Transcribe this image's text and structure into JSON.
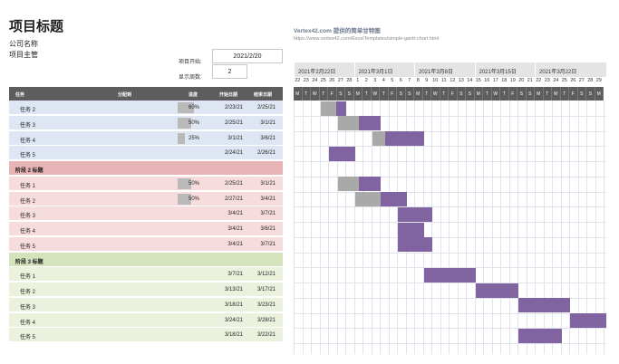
{
  "header": {
    "title": "项目标题",
    "company": "公司名称",
    "manager": "项目主管",
    "vendor": "Vertex42.com 提供的简单甘特图",
    "url": "https://www.vertex42.com/ExcelTemplates/simple-gantt-chart.html"
  },
  "controls": {
    "start_label": "项目开始:",
    "start_value": "2021/2/20",
    "week_label": "显示周数:",
    "week_value": "2"
  },
  "table": {
    "headers": {
      "task": "任务",
      "assigned": "分配到",
      "progress": "进度",
      "start": "开始日期",
      "end": "结束日期"
    },
    "rows": [
      {
        "task": "任务 2",
        "progress": "60%",
        "start": "2/23/21",
        "end": "2/25/21",
        "phase": false,
        "bg": "#dde6f2",
        "pct": 0.6,
        "bar": {
          "start_day": 3,
          "len": 3
        }
      },
      {
        "task": "任务 3",
        "progress": "50%",
        "start": "2/25/21",
        "end": "3/1/21",
        "phase": false,
        "bg": "#dde6f2",
        "pct": 0.5,
        "bar": {
          "start_day": 5,
          "len": 5
        }
      },
      {
        "task": "任务 4",
        "progress": "25%",
        "start": "3/1/21",
        "end": "3/6/21",
        "phase": false,
        "bg": "#dde6f2",
        "pct": 0.25,
        "bar": {
          "start_day": 9,
          "len": 6
        }
      },
      {
        "task": "任务 5",
        "progress": "",
        "start": "2/24/21",
        "end": "2/26/21",
        "phase": false,
        "bg": "#dde6f2",
        "pct": 0,
        "bar": {
          "start_day": 4,
          "len": 3
        }
      },
      {
        "task": "阶段 2 标题",
        "progress": "",
        "start": "",
        "end": "",
        "phase": true,
        "bg": "#e8b4b6",
        "pct": 0,
        "bar": null
      },
      {
        "task": "任务 1",
        "progress": "50%",
        "start": "2/25/21",
        "end": "3/1/21",
        "phase": false,
        "bg": "#f6dcdd",
        "pct": 0.5,
        "bar": {
          "start_day": 5,
          "len": 5
        }
      },
      {
        "task": "任务 2",
        "progress": "50%",
        "start": "2/27/21",
        "end": "3/4/21",
        "phase": false,
        "bg": "#f6dcdd",
        "pct": 0.5,
        "bar": {
          "start_day": 7,
          "len": 6
        }
      },
      {
        "task": "任务 3",
        "progress": "",
        "start": "3/4/21",
        "end": "3/7/21",
        "phase": false,
        "bg": "#f6dcdd",
        "pct": 0,
        "bar": {
          "start_day": 12,
          "len": 4
        }
      },
      {
        "task": "任务 4",
        "progress": "",
        "start": "3/4/21",
        "end": "3/6/21",
        "phase": false,
        "bg": "#f6dcdd",
        "pct": 0,
        "bar": {
          "start_day": 12,
          "len": 3
        }
      },
      {
        "task": "任务 5",
        "progress": "",
        "start": "3/4/21",
        "end": "3/7/21",
        "phase": false,
        "bg": "#f6dcdd",
        "pct": 0,
        "bar": {
          "start_day": 12,
          "len": 4
        }
      },
      {
        "task": "阶段 3 标题",
        "progress": "",
        "start": "",
        "end": "",
        "phase": true,
        "bg": "#d5e3bd",
        "pct": 0,
        "bar": null
      },
      {
        "task": "任务 1",
        "progress": "",
        "start": "3/7/21",
        "end": "3/12/21",
        "phase": false,
        "bg": "#eaf1dd",
        "pct": 0,
        "bar": {
          "start_day": 15,
          "len": 6
        }
      },
      {
        "task": "任务 2",
        "progress": "",
        "start": "3/13/21",
        "end": "3/17/21",
        "phase": false,
        "bg": "#eaf1dd",
        "pct": 0,
        "bar": {
          "start_day": 21,
          "len": 5
        }
      },
      {
        "task": "任务 3",
        "progress": "",
        "start": "3/18/21",
        "end": "3/23/21",
        "phase": false,
        "bg": "#eaf1dd",
        "pct": 0,
        "bar": {
          "start_day": 26,
          "len": 6
        }
      },
      {
        "task": "任务 4",
        "progress": "",
        "start": "3/24/21",
        "end": "3/28/21",
        "phase": false,
        "bg": "#eaf1dd",
        "pct": 0,
        "bar": {
          "start_day": 32,
          "len": 5
        }
      },
      {
        "task": "任务 5",
        "progress": "",
        "start": "3/18/21",
        "end": "3/22/21",
        "phase": false,
        "bg": "#eaf1dd",
        "pct": 0,
        "bar": {
          "start_day": 26,
          "len": 5
        }
      }
    ]
  },
  "timeline": {
    "weeks": [
      "2021年2月22日",
      "2021年3月1日",
      "2021年3月8日",
      "2021年3月15日",
      "2021年3月22日"
    ],
    "days": [
      "22",
      "23",
      "24",
      "25",
      "26",
      "27",
      "28",
      "1",
      "2",
      "3",
      "4",
      "5",
      "6",
      "7",
      "8",
      "9",
      "10",
      "11",
      "12",
      "13",
      "14",
      "15",
      "16",
      "17",
      "18",
      "19",
      "20",
      "21",
      "22",
      "23",
      "24",
      "25",
      "26",
      "27",
      "28",
      "29"
    ],
    "dows": [
      "M",
      "T",
      "W",
      "T",
      "F",
      "S",
      "S",
      "M",
      "T",
      "W",
      "T",
      "F",
      "S",
      "S",
      "M",
      "T",
      "W",
      "T",
      "F",
      "S",
      "S",
      "M",
      "T",
      "W",
      "T",
      "F",
      "S",
      "S",
      "M",
      "T",
      "W",
      "T",
      "F",
      "S",
      "S",
      "M"
    ]
  },
  "colors": {
    "done": "#a9a9a9",
    "todo": "#8064a2",
    "header": "#5d5d5d"
  }
}
